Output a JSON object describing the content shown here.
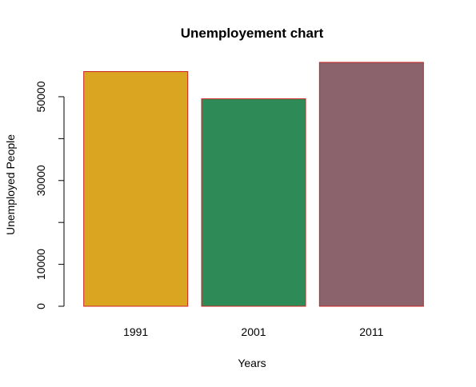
{
  "chart_data": {
    "type": "bar",
    "title": "Unemployement chart",
    "xlabel": "Years",
    "ylabel": "Unemployed People",
    "categories": [
      "1991",
      "2001",
      "2011"
    ],
    "values": [
      56000,
      49500,
      58200
    ],
    "colors": [
      "#DAA520",
      "#2E8B57",
      "#8B636C"
    ],
    "border_color": "#CC2222",
    "ylim": [
      0,
      58200
    ],
    "yticks": [
      0,
      10000,
      20000,
      30000,
      40000,
      50000
    ],
    "yticks_labeled": [
      0,
      10000,
      30000,
      50000
    ],
    "grid": false,
    "legend": "none"
  }
}
